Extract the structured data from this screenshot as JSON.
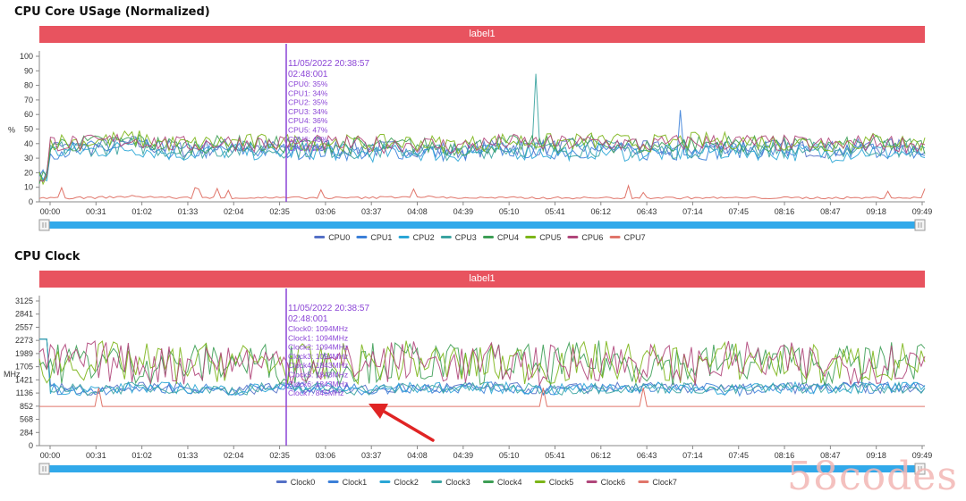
{
  "colors": {
    "banner": "#e8535f",
    "cursor": "#8b45d6",
    "slider": "#31a9ea",
    "arrow": "#e02424",
    "series": [
      "#5470c6",
      "#3b7fd8",
      "#2aa6d6",
      "#3aa3a0",
      "#3d9e55",
      "#7cb518",
      "#b0467a",
      "#e0756a"
    ]
  },
  "watermark": "58codes",
  "charts": [
    {
      "title": "CPU Core USage (Normalized)",
      "banner": "label1",
      "ylabel": "%",
      "tooltip": {
        "time": "11/05/2022 20:38:57",
        "sub": "02:48:001",
        "lines": [
          "CPU0: 35%",
          "CPU1: 34%",
          "CPU2: 35%",
          "CPU3: 34%",
          "CPU4: 36%",
          "CPU5: 47%",
          "CPU6: 48%",
          "CPU7: 2%"
        ]
      },
      "legend": [
        "CPU0",
        "CPU1",
        "CPU2",
        "CPU3",
        "CPU4",
        "CPU5",
        "CPU6",
        "CPU7"
      ]
    },
    {
      "title": "CPU Clock",
      "banner": "label1",
      "ylabel": "MHz",
      "tooltip": {
        "time": "11/05/2022 20:38:57",
        "sub": "02:48:001",
        "lines": [
          "Clock0: 1094MHz",
          "Clock1: 1094MHz",
          "Clock2: 1094MHz",
          "Clock3: 1094MHz",
          "Clock4: 1843MHz",
          "Clock5: 1843MHz",
          "Clock6: 1843MHz",
          "Clock7: 846MHz"
        ]
      },
      "legend": [
        "Clock0",
        "Clock1",
        "Clock2",
        "Clock3",
        "Clock4",
        "Clock5",
        "Clock6",
        "Clock7"
      ]
    }
  ],
  "chart_data": [
    {
      "type": "line",
      "title": "CPU Core USage (Normalized)",
      "ylabel": "%",
      "ylim": [
        0,
        100
      ],
      "yticks": [
        0,
        10,
        20,
        30,
        40,
        50,
        60,
        70,
        80,
        90,
        100
      ],
      "x_ticks": [
        "00:00",
        "00:31",
        "01:02",
        "01:33",
        "02:04",
        "02:35",
        "03:06",
        "03:37",
        "04:08",
        "04:39",
        "05:10",
        "05:41",
        "06:12",
        "06:43",
        "07:14",
        "07:45",
        "08:16",
        "08:47",
        "09:18",
        "09:49"
      ],
      "cursor_x": "02:48",
      "grid": false,
      "legend_position": "bottom",
      "series": [
        {
          "name": "CPU0",
          "levels": [
            38,
            37,
            40,
            36,
            38,
            37,
            38,
            36,
            37,
            35,
            38,
            37,
            38,
            36,
            37,
            38,
            37,
            36,
            38,
            37
          ]
        },
        {
          "name": "CPU1",
          "levels": [
            35,
            36,
            38,
            34,
            36,
            35,
            35,
            34,
            35,
            33,
            36,
            35,
            36,
            34,
            34,
            36,
            35,
            34,
            36,
            33
          ]
        },
        {
          "name": "CPU2",
          "levels": [
            34,
            35,
            37,
            33,
            35,
            34,
            35,
            33,
            34,
            33,
            35,
            34,
            35,
            33,
            34,
            35,
            34,
            33,
            35,
            32
          ]
        },
        {
          "name": "CPU3",
          "levels": [
            36,
            37,
            39,
            35,
            36,
            36,
            36,
            35,
            36,
            34,
            37,
            36,
            37,
            35,
            36,
            37,
            36,
            35,
            37,
            35
          ]
        },
        {
          "name": "CPU4",
          "levels": [
            40,
            40,
            42,
            38,
            40,
            39,
            40,
            38,
            39,
            37,
            40,
            39,
            40,
            38,
            40,
            40,
            39,
            38,
            40,
            38
          ]
        },
        {
          "name": "CPU5",
          "levels": [
            42,
            41,
            44,
            39,
            41,
            41,
            41,
            40,
            41,
            39,
            42,
            41,
            42,
            40,
            42,
            42,
            41,
            40,
            42,
            40
          ]
        },
        {
          "name": "CPU6",
          "levels": [
            41,
            40,
            43,
            39,
            41,
            40,
            40,
            39,
            40,
            38,
            41,
            40,
            41,
            39,
            41,
            41,
            40,
            39,
            41,
            39
          ]
        },
        {
          "name": "CPU7",
          "levels": [
            2,
            2,
            3,
            2,
            2,
            2,
            2,
            2,
            3,
            2,
            2,
            2,
            2,
            2,
            2,
            2,
            2,
            2,
            2,
            2
          ]
        }
      ]
    },
    {
      "type": "line",
      "title": "CPU Clock",
      "ylabel": "MHz",
      "ylim": [
        0,
        3125
      ],
      "yticks": [
        0,
        284,
        568,
        852,
        1136,
        1421,
        1705,
        1989,
        2273,
        2557,
        2841,
        3125
      ],
      "x_ticks": [
        "00:00",
        "00:31",
        "01:02",
        "01:33",
        "02:04",
        "02:35",
        "03:06",
        "03:37",
        "04:08",
        "04:39",
        "05:10",
        "05:41",
        "06:12",
        "06:43",
        "07:14",
        "07:45",
        "08:16",
        "08:47",
        "09:18",
        "09:49"
      ],
      "cursor_x": "02:48",
      "grid": false,
      "legend_position": "bottom",
      "series": [
        {
          "name": "Clock0",
          "levels": [
            1250,
            1200,
            1250,
            1250,
            1200,
            1250,
            1250,
            1200,
            1250,
            1250,
            1250,
            1200,
            1250,
            1250,
            1250,
            1200,
            1250,
            1250,
            1250,
            1250
          ]
        },
        {
          "name": "Clock1",
          "levels": [
            1250,
            1200,
            1250,
            1250,
            1200,
            1250,
            1250,
            1200,
            1250,
            1250,
            1250,
            1200,
            1250,
            1250,
            1250,
            1200,
            1250,
            1250,
            1250,
            1250
          ]
        },
        {
          "name": "Clock2",
          "levels": [
            1250,
            1200,
            1250,
            1250,
            1200,
            1250,
            1250,
            1200,
            1250,
            1250,
            1250,
            1200,
            1250,
            1250,
            1250,
            1200,
            1250,
            1250,
            1250,
            1250
          ]
        },
        {
          "name": "Clock3",
          "levels": [
            1250,
            1200,
            1250,
            1250,
            1200,
            1250,
            1250,
            1200,
            1250,
            1250,
            1250,
            1200,
            1250,
            1250,
            1250,
            1200,
            1250,
            1250,
            1250,
            1250
          ]
        },
        {
          "name": "Clock4",
          "levels": [
            1600,
            1700,
            1650,
            1600,
            1700,
            1650,
            1600,
            1650,
            1700,
            1600,
            1650,
            1600,
            1700,
            1650,
            1600,
            1700,
            1650,
            1600,
            1650,
            1700
          ]
        },
        {
          "name": "Clock5",
          "levels": [
            1600,
            1700,
            1650,
            1600,
            1700,
            1650,
            1600,
            1650,
            1700,
            1600,
            1650,
            1600,
            1700,
            1650,
            1600,
            1700,
            1650,
            1600,
            1650,
            1700
          ]
        },
        {
          "name": "Clock6",
          "levels": [
            1600,
            1700,
            1650,
            1600,
            1700,
            1650,
            1600,
            1650,
            1700,
            1600,
            1650,
            1600,
            1700,
            1650,
            1600,
            1700,
            1650,
            1600,
            1650,
            1700
          ]
        },
        {
          "name": "Clock7",
          "levels": [
            846,
            846,
            846,
            846,
            846,
            846,
            846,
            846,
            846,
            846,
            846,
            846,
            846,
            846,
            846,
            846,
            846,
            846,
            846,
            846
          ]
        }
      ]
    }
  ]
}
